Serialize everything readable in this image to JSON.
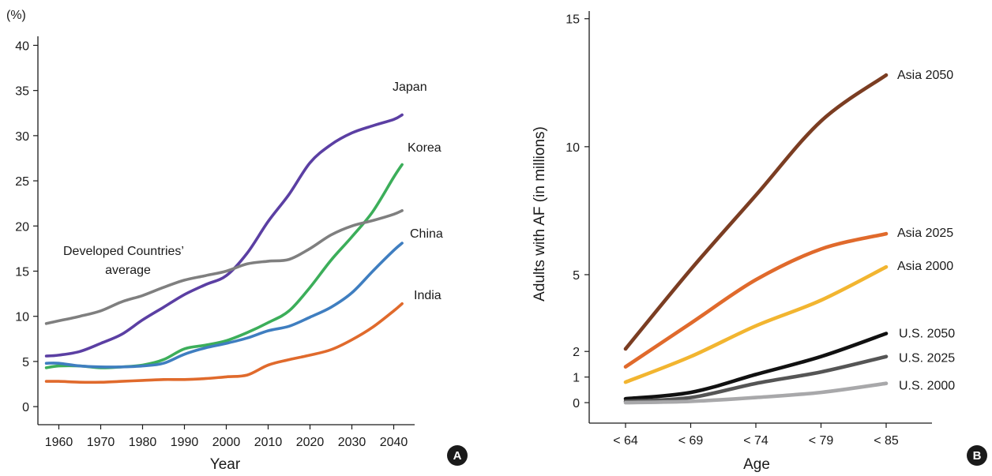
{
  "chart_data": [
    {
      "type": "line",
      "panel": "A",
      "unit_label": "(%)",
      "xlabel": "Year",
      "ylabel": "",
      "xlim": [
        1955,
        2045
      ],
      "ylim": [
        -2,
        41
      ],
      "xticks": [
        1960,
        1970,
        1980,
        1990,
        2000,
        2010,
        2020,
        2030,
        2040
      ],
      "yticks": [
        0,
        5,
        10,
        15,
        20,
        25,
        30,
        35,
        40
      ],
      "grid": false,
      "legend": "inline labels",
      "series": [
        {
          "name": "Japan",
          "label": "Japan",
          "color": "#5b3fa3",
          "x": [
            1957,
            1960,
            1965,
            1970,
            1975,
            1980,
            1985,
            1990,
            1995,
            2000,
            2005,
            2010,
            2015,
            2020,
            2025,
            2030,
            2035,
            2040,
            2042
          ],
          "y": [
            5.6,
            5.7,
            6.1,
            7.0,
            8.0,
            9.6,
            11.0,
            12.4,
            13.5,
            14.5,
            17.0,
            20.5,
            23.5,
            27.0,
            29.0,
            30.3,
            31.1,
            31.8,
            32.3
          ]
        },
        {
          "name": "Korea",
          "label": "Korea",
          "color": "#3cae5a",
          "x": [
            1957,
            1960,
            1965,
            1970,
            1975,
            1980,
            1985,
            1990,
            1995,
            2000,
            2005,
            2010,
            2015,
            2020,
            2025,
            2030,
            2035,
            2040,
            2042
          ],
          "y": [
            4.3,
            4.5,
            4.5,
            4.3,
            4.4,
            4.6,
            5.2,
            6.4,
            6.8,
            7.3,
            8.2,
            9.3,
            10.6,
            13.2,
            16.2,
            18.8,
            21.6,
            25.4,
            26.8
          ]
        },
        {
          "name": "Developed Countries’ average",
          "label": "Developed Countries’ average",
          "color": "#7f7f7f",
          "x": [
            1957,
            1960,
            1965,
            1970,
            1975,
            1980,
            1985,
            1990,
            1995,
            2000,
            2005,
            2010,
            2015,
            2020,
            2025,
            2030,
            2035,
            2040,
            2042
          ],
          "y": [
            9.2,
            9.5,
            10.0,
            10.6,
            11.6,
            12.3,
            13.2,
            14.0,
            14.5,
            15.0,
            15.8,
            16.1,
            16.3,
            17.5,
            19.0,
            20.0,
            20.6,
            21.3,
            21.7
          ]
        },
        {
          "name": "China",
          "label": "China",
          "color": "#3f7ec0",
          "x": [
            1957,
            1960,
            1965,
            1970,
            1975,
            1980,
            1985,
            1990,
            1995,
            2000,
            2005,
            2010,
            2015,
            2020,
            2025,
            2030,
            2035,
            2040,
            2042
          ],
          "y": [
            4.8,
            4.8,
            4.5,
            4.4,
            4.4,
            4.5,
            4.8,
            5.8,
            6.5,
            7.0,
            7.6,
            8.4,
            8.9,
            9.9,
            11.0,
            12.6,
            15.0,
            17.3,
            18.1
          ]
        },
        {
          "name": "India",
          "label": "India",
          "color": "#e06a2c",
          "x": [
            1957,
            1960,
            1965,
            1970,
            1975,
            1980,
            1985,
            1990,
            1995,
            2000,
            2005,
            2010,
            2015,
            2020,
            2025,
            2030,
            2035,
            2040,
            2042
          ],
          "y": [
            2.8,
            2.8,
            2.7,
            2.7,
            2.8,
            2.9,
            3.0,
            3.0,
            3.1,
            3.3,
            3.5,
            4.6,
            5.2,
            5.7,
            6.3,
            7.4,
            8.8,
            10.6,
            11.4
          ]
        }
      ],
      "series_labels": [
        "Japan",
        "Korea",
        "China",
        "India",
        "Developed Countries’",
        "average"
      ]
    },
    {
      "type": "line",
      "panel": "B",
      "xlabel": "Age",
      "ylabel": "Adults with AF (in millions)",
      "categories": [
        "< 64",
        "< 69",
        "< 74",
        "< 79",
        "< 85"
      ],
      "yticks": [
        0,
        1,
        2,
        5,
        10,
        15
      ],
      "ylim": [
        -0.8,
        15.3
      ],
      "grid": false,
      "legend": "inline labels",
      "series": [
        {
          "name": "Asia 2050",
          "color": "#7b3d22",
          "values": [
            2.1,
            5.2,
            8.1,
            11.0,
            12.8
          ]
        },
        {
          "name": "Asia 2025",
          "color": "#e06a2c",
          "values": [
            1.4,
            3.1,
            4.8,
            6.0,
            6.6
          ]
        },
        {
          "name": "Asia 2000",
          "color": "#f2b530",
          "values": [
            0.8,
            1.8,
            3.0,
            4.0,
            5.3
          ]
        },
        {
          "name": "U.S. 2050",
          "color": "#111111",
          "values": [
            0.15,
            0.4,
            1.1,
            1.8,
            2.7
          ]
        },
        {
          "name": "U.S. 2025",
          "color": "#555555",
          "values": [
            0.05,
            0.2,
            0.75,
            1.2,
            1.8
          ]
        },
        {
          "name": "U.S. 2000",
          "color": "#a8a8aa",
          "values": [
            0.0,
            0.05,
            0.2,
            0.4,
            0.75
          ]
        }
      ]
    }
  ]
}
